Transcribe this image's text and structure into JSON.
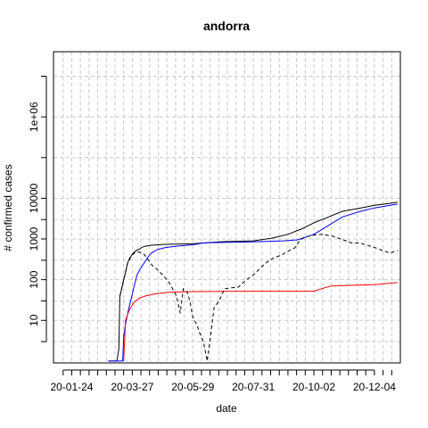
{
  "chart_data": {
    "type": "line",
    "title": "andorra",
    "xlabel": "date",
    "ylabel": "# confirmed cases",
    "x_ticks": [
      "20-01-24",
      "20-03-27",
      "20-05-29",
      "20-07-31",
      "20-10-02",
      "20-12-04"
    ],
    "y_scale": "log",
    "y_ticks": [
      {
        "value": 10,
        "label": "10"
      },
      {
        "value": 100,
        "label": "100"
      },
      {
        "value": 1000,
        "label": "1000"
      },
      {
        "value": 10000,
        "label": "10000"
      },
      {
        "value": 1000000,
        "label": "1e+06"
      }
    ],
    "y_minor_ticks": [
      3,
      30,
      300,
      3000,
      100000,
      10000000
    ],
    "xlim": [
      "2020-01-05",
      "2020-12-31"
    ],
    "ylim": [
      0.9,
      40000000
    ],
    "grid": true,
    "legend": "none",
    "colors": {
      "black": "#000000",
      "blue": "#0000ff",
      "red": "#ff0000",
      "grid": "#c8c8c8"
    },
    "series": [
      {
        "color": "#000000",
        "style": "solid",
        "points": [
          [
            "2020-03-02",
            1
          ],
          [
            "2020-03-09",
            1
          ],
          [
            "2020-03-11",
            1
          ],
          [
            "2020-03-13",
            2
          ],
          [
            "2020-03-14",
            39
          ],
          [
            "2020-03-16",
            60
          ],
          [
            "2020-03-18",
            100
          ],
          [
            "2020-03-20",
            150
          ],
          [
            "2020-03-22",
            250
          ],
          [
            "2020-03-24",
            330
          ],
          [
            "2020-03-27",
            420
          ],
          [
            "2020-03-30",
            500
          ],
          [
            "2020-04-03",
            560
          ],
          [
            "2020-04-08",
            650
          ],
          [
            "2020-04-15",
            700
          ],
          [
            "2020-04-30",
            740
          ],
          [
            "2020-05-29",
            760
          ],
          [
            "2020-06-30",
            860
          ],
          [
            "2020-07-31",
            900
          ],
          [
            "2020-08-20",
            1050
          ],
          [
            "2020-09-05",
            1300
          ],
          [
            "2020-09-20",
            1800
          ],
          [
            "2020-10-02",
            2500
          ],
          [
            "2020-10-15",
            3300
          ],
          [
            "2020-11-01",
            4800
          ],
          [
            "2020-11-20",
            5800
          ],
          [
            "2020-12-04",
            6700
          ],
          [
            "2020-12-20",
            7500
          ],
          [
            "2020-12-28",
            8000
          ]
        ]
      },
      {
        "color": "#0000ff",
        "style": "solid",
        "points": [
          [
            "2020-03-02",
            1
          ],
          [
            "2020-03-17",
            1
          ],
          [
            "2020-03-18",
            4
          ],
          [
            "2020-03-20",
            8
          ],
          [
            "2020-03-23",
            18
          ],
          [
            "2020-03-26",
            35
          ],
          [
            "2020-03-29",
            70
          ],
          [
            "2020-04-01",
            130
          ],
          [
            "2020-04-04",
            180
          ],
          [
            "2020-04-08",
            250
          ],
          [
            "2020-04-12",
            350
          ],
          [
            "2020-04-16",
            450
          ],
          [
            "2020-04-22",
            550
          ],
          [
            "2020-05-01",
            620
          ],
          [
            "2020-05-15",
            680
          ],
          [
            "2020-05-29",
            720
          ],
          [
            "2020-06-10",
            800
          ],
          [
            "2020-06-30",
            820
          ],
          [
            "2020-07-31",
            850
          ],
          [
            "2020-08-31",
            900
          ],
          [
            "2020-09-15",
            950
          ],
          [
            "2020-10-02",
            1300
          ],
          [
            "2020-10-15",
            2000
          ],
          [
            "2020-11-01",
            3500
          ],
          [
            "2020-11-20",
            4800
          ],
          [
            "2020-12-04",
            5800
          ],
          [
            "2020-12-28",
            7200
          ]
        ]
      },
      {
        "color": "#ff0000",
        "style": "solid",
        "points": [
          [
            "2020-03-18",
            1
          ],
          [
            "2020-03-19",
            3
          ],
          [
            "2020-03-20",
            10
          ],
          [
            "2020-03-22",
            14
          ],
          [
            "2020-03-25",
            20
          ],
          [
            "2020-03-29",
            28
          ],
          [
            "2020-04-03",
            35
          ],
          [
            "2020-04-10",
            40
          ],
          [
            "2020-04-20",
            45
          ],
          [
            "2020-05-05",
            49
          ],
          [
            "2020-05-29",
            51
          ],
          [
            "2020-07-31",
            52
          ],
          [
            "2020-10-02",
            52
          ],
          [
            "2020-10-10",
            60
          ],
          [
            "2020-10-20",
            70
          ],
          [
            "2020-11-01",
            72
          ],
          [
            "2020-12-04",
            75
          ],
          [
            "2020-12-28",
            85
          ]
        ]
      },
      {
        "color": "#000000",
        "style": "dashed",
        "points": [
          [
            "2020-03-14",
            39
          ],
          [
            "2020-03-18",
            100
          ],
          [
            "2020-03-22",
            250
          ],
          [
            "2020-03-26",
            380
          ],
          [
            "2020-03-30",
            470
          ],
          [
            "2020-04-03",
            480
          ],
          [
            "2020-04-08",
            430
          ],
          [
            "2020-04-12",
            320
          ],
          [
            "2020-04-17",
            220
          ],
          [
            "2020-04-23",
            170
          ],
          [
            "2020-04-29",
            120
          ],
          [
            "2020-05-05",
            80
          ],
          [
            "2020-05-12",
            40
          ],
          [
            "2020-05-16",
            15
          ],
          [
            "2020-05-19",
            60
          ],
          [
            "2020-05-23",
            50
          ],
          [
            "2020-05-26",
            30
          ],
          [
            "2020-05-29",
            12
          ],
          [
            "2020-06-02",
            8
          ],
          [
            "2020-06-05",
            5
          ],
          [
            "2020-06-09",
            3
          ],
          [
            "2020-06-13",
            1
          ],
          [
            "2020-06-17",
            5
          ],
          [
            "2020-06-20",
            20
          ],
          [
            "2020-06-26",
            32
          ],
          [
            "2020-07-01",
            60
          ],
          [
            "2020-07-08",
            63
          ],
          [
            "2020-07-15",
            65
          ],
          [
            "2020-07-24",
            100
          ],
          [
            "2020-07-31",
            130
          ],
          [
            "2020-08-08",
            200
          ],
          [
            "2020-08-15",
            280
          ],
          [
            "2020-08-22",
            350
          ],
          [
            "2020-08-29",
            400
          ],
          [
            "2020-09-05",
            500
          ],
          [
            "2020-09-12",
            600
          ],
          [
            "2020-09-17",
            900
          ],
          [
            "2020-09-22",
            1100
          ],
          [
            "2020-10-02",
            1250
          ],
          [
            "2020-10-10",
            1300
          ],
          [
            "2020-10-20",
            1200
          ],
          [
            "2020-10-30",
            1000
          ],
          [
            "2020-11-10",
            800
          ],
          [
            "2020-11-20",
            780
          ],
          [
            "2020-12-04",
            620
          ],
          [
            "2020-12-12",
            530
          ],
          [
            "2020-12-20",
            450
          ],
          [
            "2020-12-28",
            520
          ]
        ]
      }
    ]
  }
}
